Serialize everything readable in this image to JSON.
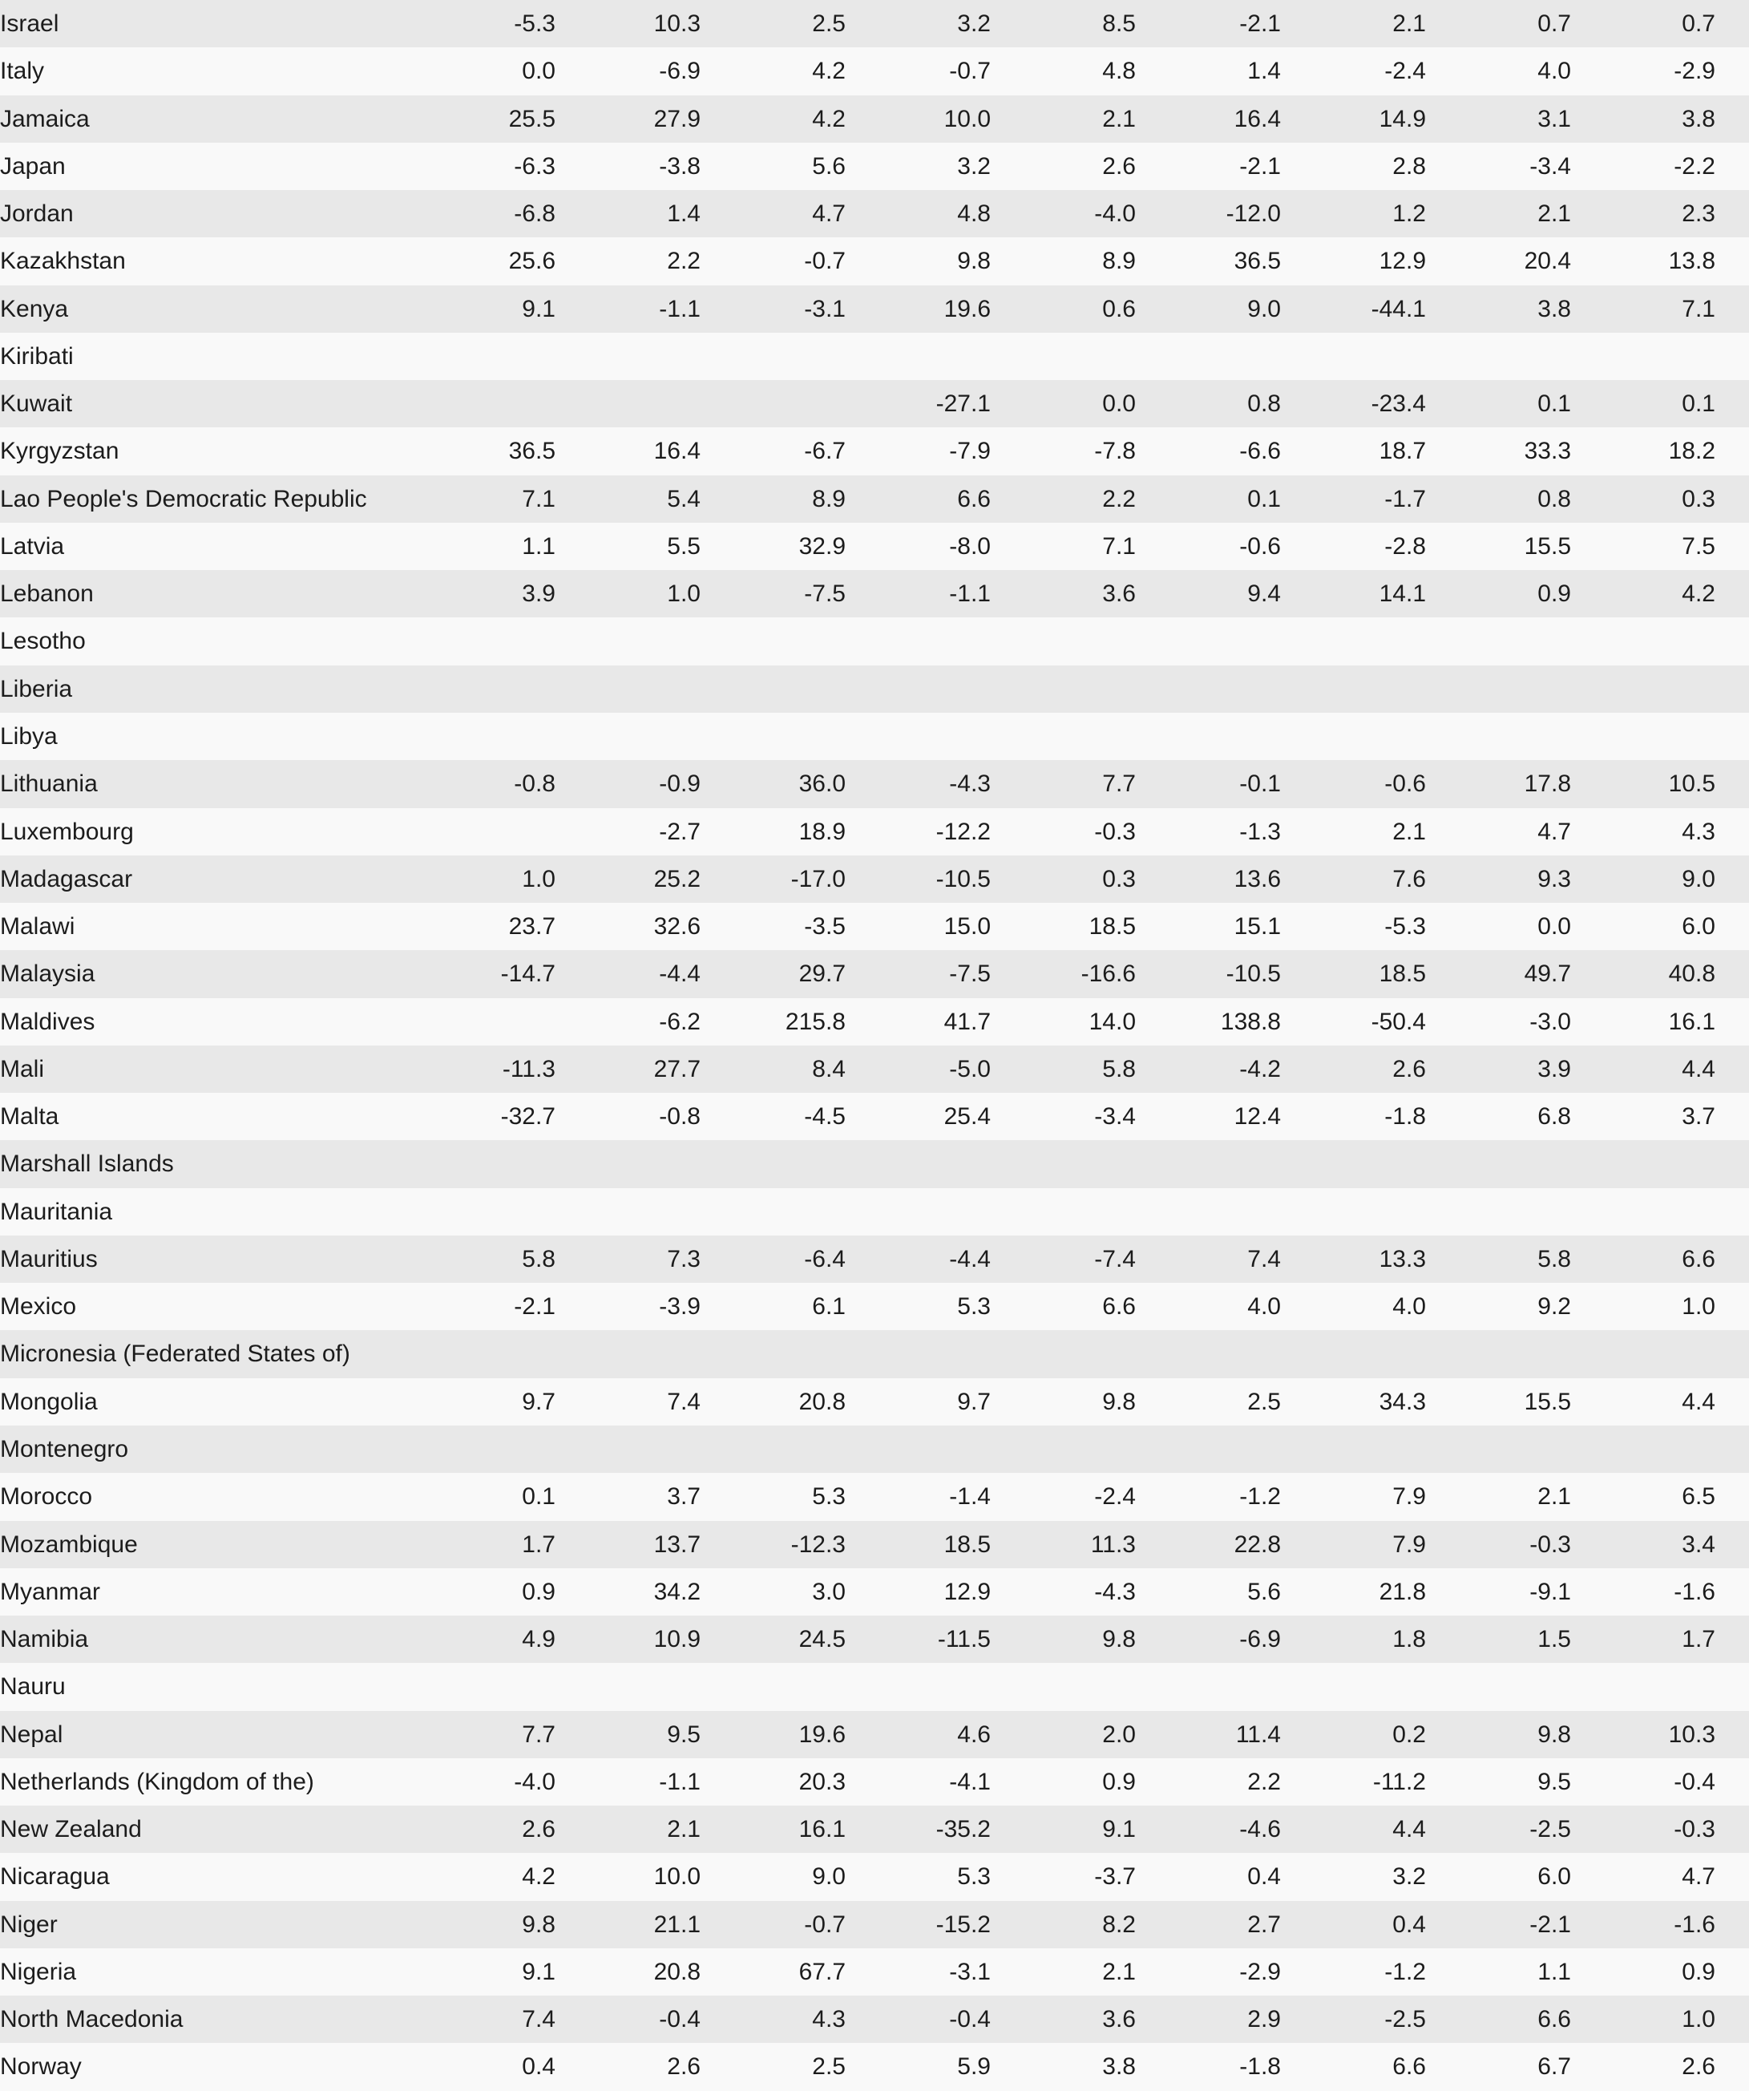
{
  "style": {
    "stripe_color_dark_rows": "#e8e8e8",
    "stripe_color_light_rows": "#f9f9f9",
    "text_color": "#1c1c1c"
  },
  "chart_data": {
    "type": "table",
    "value_column_count": 9,
    "note_layout": "first column country name left-aligned; nine numeric columns right-aligned; blank strings are empty cells; rows alternate dark/light starting dark",
    "rows": [
      {
        "name": "Israel",
        "values": [
          "-5.3",
          "10.3",
          "2.5",
          "3.2",
          "8.5",
          "-2.1",
          "2.1",
          "0.7",
          "0.7"
        ]
      },
      {
        "name": "Italy",
        "values": [
          "0.0",
          "-6.9",
          "4.2",
          "-0.7",
          "4.8",
          "1.4",
          "-2.4",
          "4.0",
          "-2.9"
        ]
      },
      {
        "name": "Jamaica",
        "values": [
          "25.5",
          "27.9",
          "4.2",
          "10.0",
          "2.1",
          "16.4",
          "14.9",
          "3.1",
          "3.8"
        ]
      },
      {
        "name": "Japan",
        "values": [
          "-6.3",
          "-3.8",
          "5.6",
          "3.2",
          "2.6",
          "-2.1",
          "2.8",
          "-3.4",
          "-2.2"
        ]
      },
      {
        "name": "Jordan",
        "values": [
          "-6.8",
          "1.4",
          "4.7",
          "4.8",
          "-4.0",
          "-12.0",
          "1.2",
          "2.1",
          "2.3"
        ]
      },
      {
        "name": "Kazakhstan",
        "values": [
          "25.6",
          "2.2",
          "-0.7",
          "9.8",
          "8.9",
          "36.5",
          "12.9",
          "20.4",
          "13.8"
        ]
      },
      {
        "name": "Kenya",
        "values": [
          "9.1",
          "-1.1",
          "-3.1",
          "19.6",
          "0.6",
          "9.0",
          "-44.1",
          "3.8",
          "7.1"
        ]
      },
      {
        "name": "Kiribati",
        "values": [
          "",
          "",
          "",
          "",
          "",
          "",
          "",
          "",
          ""
        ]
      },
      {
        "name": "Kuwait",
        "values": [
          "",
          "",
          "",
          "-27.1",
          "0.0",
          "0.8",
          "-23.4",
          "0.1",
          "0.1"
        ]
      },
      {
        "name": "Kyrgyzstan",
        "values": [
          "36.5",
          "16.4",
          "-6.7",
          "-7.9",
          "-7.8",
          "-6.6",
          "18.7",
          "33.3",
          "18.2"
        ]
      },
      {
        "name": "Lao People's Democratic Republic",
        "values": [
          "7.1",
          "5.4",
          "8.9",
          "6.6",
          "2.2",
          "0.1",
          "-1.7",
          "0.8",
          "0.3"
        ]
      },
      {
        "name": "Latvia",
        "values": [
          "1.1",
          "5.5",
          "32.9",
          "-8.0",
          "7.1",
          "-0.6",
          "-2.8",
          "15.5",
          "7.5"
        ]
      },
      {
        "name": "Lebanon",
        "values": [
          "3.9",
          "1.0",
          "-7.5",
          "-1.1",
          "3.6",
          "9.4",
          "14.1",
          "0.9",
          "4.2"
        ]
      },
      {
        "name": "Lesotho",
        "values": [
          "",
          "",
          "",
          "",
          "",
          "",
          "",
          "",
          ""
        ]
      },
      {
        "name": "Liberia",
        "values": [
          "",
          "",
          "",
          "",
          "",
          "",
          "",
          "",
          ""
        ]
      },
      {
        "name": "Libya",
        "values": [
          "",
          "",
          "",
          "",
          "",
          "",
          "",
          "",
          ""
        ]
      },
      {
        "name": "Lithuania",
        "values": [
          "-0.8",
          "-0.9",
          "36.0",
          "-4.3",
          "7.7",
          "-0.1",
          "-0.6",
          "17.8",
          "10.5"
        ]
      },
      {
        "name": "Luxembourg",
        "values": [
          "",
          "-2.7",
          "18.9",
          "-12.2",
          "-0.3",
          "-1.3",
          "2.1",
          "4.7",
          "4.3"
        ]
      },
      {
        "name": "Madagascar",
        "values": [
          "1.0",
          "25.2",
          "-17.0",
          "-10.5",
          "0.3",
          "13.6",
          "7.6",
          "9.3",
          "9.0"
        ]
      },
      {
        "name": "Malawi",
        "values": [
          "23.7",
          "32.6",
          "-3.5",
          "15.0",
          "18.5",
          "15.1",
          "-5.3",
          "0.0",
          "6.0"
        ]
      },
      {
        "name": "Malaysia",
        "values": [
          "-14.7",
          "-4.4",
          "29.7",
          "-7.5",
          "-16.6",
          "-10.5",
          "18.5",
          "49.7",
          "40.8"
        ]
      },
      {
        "name": "Maldives",
        "values": [
          "",
          "-6.2",
          "215.8",
          "41.7",
          "14.0",
          "138.8",
          "-50.4",
          "-3.0",
          "16.1"
        ]
      },
      {
        "name": "Mali",
        "values": [
          "-11.3",
          "27.7",
          "8.4",
          "-5.0",
          "5.8",
          "-4.2",
          "2.6",
          "3.9",
          "4.4"
        ]
      },
      {
        "name": "Malta",
        "values": [
          "-32.7",
          "-0.8",
          "-4.5",
          "25.4",
          "-3.4",
          "12.4",
          "-1.8",
          "6.8",
          "3.7"
        ]
      },
      {
        "name": "Marshall Islands",
        "values": [
          "",
          "",
          "",
          "",
          "",
          "",
          "",
          "",
          ""
        ]
      },
      {
        "name": "Mauritania",
        "values": [
          "",
          "",
          "",
          "",
          "",
          "",
          "",
          "",
          ""
        ]
      },
      {
        "name": "Mauritius",
        "values": [
          "5.8",
          "7.3",
          "-6.4",
          "-4.4",
          "-7.4",
          "7.4",
          "13.3",
          "5.8",
          "6.6"
        ]
      },
      {
        "name": "Mexico",
        "values": [
          "-2.1",
          "-3.9",
          "6.1",
          "5.3",
          "6.6",
          "4.0",
          "4.0",
          "9.2",
          "1.0"
        ]
      },
      {
        "name": "Micronesia (Federated States of)",
        "values": [
          "",
          "",
          "",
          "",
          "",
          "",
          "",
          "",
          ""
        ]
      },
      {
        "name": "Mongolia",
        "values": [
          "9.7",
          "7.4",
          "20.8",
          "9.7",
          "9.8",
          "2.5",
          "34.3",
          "15.5",
          "4.4"
        ]
      },
      {
        "name": "Montenegro",
        "values": [
          "",
          "",
          "",
          "",
          "",
          "",
          "",
          "",
          ""
        ]
      },
      {
        "name": "Morocco",
        "values": [
          "0.1",
          "3.7",
          "5.3",
          "-1.4",
          "-2.4",
          "-1.2",
          "7.9",
          "2.1",
          "6.5"
        ]
      },
      {
        "name": "Mozambique",
        "values": [
          "1.7",
          "13.7",
          "-12.3",
          "18.5",
          "11.3",
          "22.8",
          "7.9",
          "-0.3",
          "3.4"
        ]
      },
      {
        "name": "Myanmar",
        "values": [
          "0.9",
          "34.2",
          "3.0",
          "12.9",
          "-4.3",
          "5.6",
          "21.8",
          "-9.1",
          "-1.6"
        ]
      },
      {
        "name": "Namibia",
        "values": [
          "4.9",
          "10.9",
          "24.5",
          "-11.5",
          "9.8",
          "-6.9",
          "1.8",
          "1.5",
          "1.7"
        ]
      },
      {
        "name": "Nauru",
        "values": [
          "",
          "",
          "",
          "",
          "",
          "",
          "",
          "",
          ""
        ]
      },
      {
        "name": "Nepal",
        "values": [
          "7.7",
          "9.5",
          "19.6",
          "4.6",
          "2.0",
          "11.4",
          "0.2",
          "9.8",
          "10.3"
        ]
      },
      {
        "name": "Netherlands (Kingdom of the)",
        "values": [
          "-4.0",
          "-1.1",
          "20.3",
          "-4.1",
          "0.9",
          "2.2",
          "-11.2",
          "9.5",
          "-0.4"
        ]
      },
      {
        "name": "New Zealand",
        "values": [
          "2.6",
          "2.1",
          "16.1",
          "-35.2",
          "9.1",
          "-4.6",
          "4.4",
          "-2.5",
          "-0.3"
        ]
      },
      {
        "name": "Nicaragua",
        "values": [
          "4.2",
          "10.0",
          "9.0",
          "5.3",
          "-3.7",
          "0.4",
          "3.2",
          "6.0",
          "4.7"
        ]
      },
      {
        "name": "Niger",
        "values": [
          "9.8",
          "21.1",
          "-0.7",
          "-15.2",
          "8.2",
          "2.7",
          "0.4",
          "-2.1",
          "-1.6"
        ]
      },
      {
        "name": "Nigeria",
        "values": [
          "9.1",
          "20.8",
          "67.7",
          "-3.1",
          "2.1",
          "-2.9",
          "-1.2",
          "1.1",
          "0.9"
        ]
      },
      {
        "name": "North Macedonia",
        "values": [
          "7.4",
          "-0.4",
          "4.3",
          "-0.4",
          "3.6",
          "2.9",
          "-2.5",
          "6.6",
          "1.0"
        ]
      },
      {
        "name": "Norway",
        "values": [
          "0.4",
          "2.6",
          "2.5",
          "5.9",
          "3.8",
          "-1.8",
          "6.6",
          "6.7",
          "2.6"
        ]
      }
    ]
  }
}
